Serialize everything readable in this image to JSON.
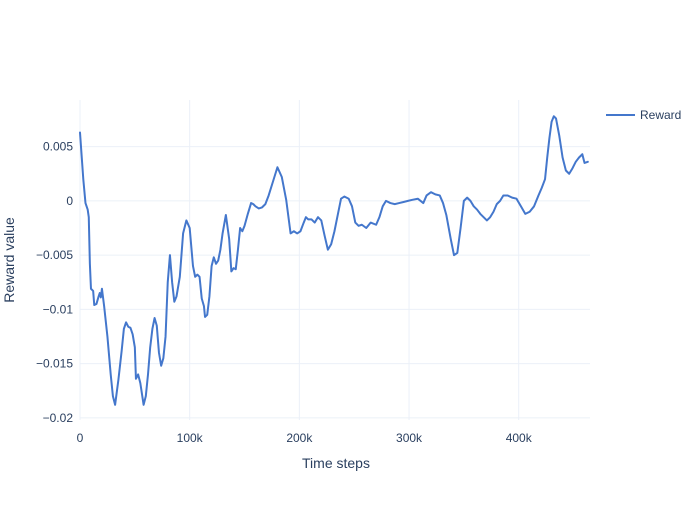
{
  "chart_data": {
    "type": "line",
    "title": "",
    "xlabel": "Time steps",
    "ylabel": "Reward value",
    "xlim": [
      0,
      465000
    ],
    "ylim": [
      -0.0202,
      0.0093
    ],
    "x_ticks": [
      {
        "value": 0,
        "label": "0"
      },
      {
        "value": 100000,
        "label": "100k"
      },
      {
        "value": 200000,
        "label": "200k"
      },
      {
        "value": 300000,
        "label": "300k"
      },
      {
        "value": 400000,
        "label": "400k"
      }
    ],
    "y_ticks": [
      {
        "value": 0.005,
        "label": "0.005"
      },
      {
        "value": 0,
        "label": "0"
      },
      {
        "value": -0.005,
        "label": "−0.005"
      },
      {
        "value": -0.01,
        "label": "−0.01"
      },
      {
        "value": -0.015,
        "label": "−0.015"
      },
      {
        "value": -0.02,
        "label": "−0.02"
      }
    ],
    "grid": true,
    "legend_position": "top-right",
    "series": [
      {
        "name": "Reward",
        "color": "#4477cc",
        "x": [
          0,
          3000,
          5000,
          7000,
          8000,
          9000,
          10000,
          12000,
          13000,
          15000,
          17000,
          18000,
          19000,
          20000,
          22000,
          25000,
          28000,
          30000,
          32000,
          35000,
          38000,
          40000,
          42000,
          44000,
          46000,
          48000,
          50000,
          51000,
          53000,
          55000,
          58000,
          60000,
          62000,
          64000,
          66000,
          68000,
          70000,
          72000,
          74000,
          76000,
          78000,
          80000,
          82000,
          84000,
          86000,
          88000,
          91000,
          94000,
          97000,
          100000,
          103000,
          105000,
          107000,
          109000,
          111000,
          113000,
          114000,
          116000,
          118000,
          120000,
          122000,
          124000,
          126000,
          128000,
          130000,
          133000,
          136000,
          138000,
          140000,
          142000,
          144000,
          146000,
          148000,
          150000,
          153000,
          156000,
          158000,
          160000,
          163000,
          166000,
          169000,
          172000,
          176000,
          180000,
          184000,
          188000,
          192000,
          195000,
          198000,
          201000,
          204000,
          206000,
          208000,
          211000,
          214000,
          217000,
          220000,
          223000,
          226000,
          229000,
          232000,
          235000,
          238000,
          241000,
          245000,
          248000,
          251000,
          254000,
          257000,
          261000,
          265000,
          270000,
          273000,
          276000,
          279000,
          283000,
          287000,
          291000,
          295000,
          299000,
          303000,
          308000,
          313000,
          316000,
          320000,
          324000,
          328000,
          331000,
          334000,
          338000,
          341000,
          344000,
          347000,
          350000,
          353000,
          356000,
          359000,
          362000,
          365000,
          368000,
          371000,
          374000,
          377000,
          380000,
          383000,
          386000,
          390000,
          394000,
          398000,
          402000,
          406000,
          410000,
          414000,
          418000,
          421000,
          424000,
          426000,
          428000,
          430000,
          432000,
          434000,
          437000,
          440000,
          443000,
          446000,
          449000,
          452000,
          455000,
          458000,
          460000,
          463000
        ],
        "y": [
          0.0063,
          0.002,
          -0.0002,
          -0.0008,
          -0.0015,
          -0.0058,
          -0.0081,
          -0.0083,
          -0.0096,
          -0.0095,
          -0.0088,
          -0.0085,
          -0.0089,
          -0.0081,
          -0.0097,
          -0.0125,
          -0.016,
          -0.018,
          -0.0188,
          -0.0165,
          -0.0138,
          -0.0118,
          -0.0112,
          -0.0116,
          -0.0117,
          -0.0123,
          -0.0135,
          -0.0164,
          -0.016,
          -0.0168,
          -0.0188,
          -0.018,
          -0.016,
          -0.0135,
          -0.0118,
          -0.0108,
          -0.0115,
          -0.014,
          -0.0152,
          -0.0145,
          -0.0125,
          -0.0075,
          -0.005,
          -0.0075,
          -0.0093,
          -0.0088,
          -0.007,
          -0.003,
          -0.0018,
          -0.0025,
          -0.006,
          -0.007,
          -0.0068,
          -0.007,
          -0.009,
          -0.0097,
          -0.0107,
          -0.0105,
          -0.0088,
          -0.006,
          -0.0052,
          -0.0058,
          -0.0055,
          -0.0045,
          -0.003,
          -0.0013,
          -0.0035,
          -0.0065,
          -0.0062,
          -0.0063,
          -0.0045,
          -0.0025,
          -0.0028,
          -0.0023,
          -0.0012,
          -0.0002,
          -0.0003,
          -0.0005,
          -0.0007,
          -0.0006,
          -0.0003,
          0.0005,
          0.0018,
          0.0031,
          0.0022,
          0.0001,
          -0.003,
          -0.0028,
          -0.003,
          -0.0028,
          -0.002,
          -0.0015,
          -0.0017,
          -0.0017,
          -0.002,
          -0.0015,
          -0.0018,
          -0.0032,
          -0.0045,
          -0.004,
          -0.0028,
          -0.0013,
          0.0002,
          0.0004,
          0.0002,
          -0.0005,
          -0.002,
          -0.0023,
          -0.0022,
          -0.0025,
          -0.002,
          -0.0022,
          -0.0015,
          -0.0005,
          0.0,
          -0.0002,
          -0.0003,
          -0.0002,
          -0.0001,
          0.0,
          0.0001,
          0.0002,
          -0.0002,
          0.0005,
          0.0008,
          0.0006,
          0.0005,
          -0.0002,
          -0.0013,
          -0.0035,
          -0.005,
          -0.0048,
          -0.0025,
          0.0,
          0.0003,
          0.0,
          -0.0005,
          -0.0008,
          -0.0012,
          -0.0015,
          -0.0018,
          -0.0015,
          -0.001,
          -0.0003,
          0.0,
          0.0005,
          0.0005,
          0.0003,
          0.0002,
          -0.0005,
          -0.0012,
          -0.001,
          -0.0005,
          0.0005,
          0.0012,
          0.002,
          0.004,
          0.0058,
          0.0073,
          0.0078,
          0.0076,
          0.006,
          0.004,
          0.0028,
          0.0025,
          0.003,
          0.0036,
          0.004,
          0.0043,
          0.0035,
          0.0036
        ]
      }
    ]
  }
}
